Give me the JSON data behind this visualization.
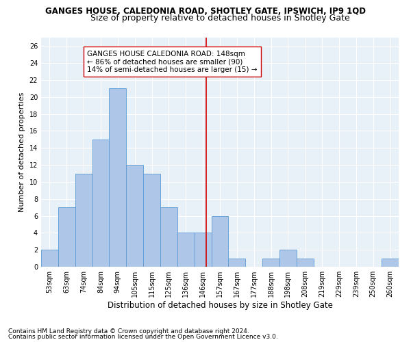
{
  "title": "GANGES HOUSE, CALEDONIA ROAD, SHOTLEY GATE, IPSWICH, IP9 1QD",
  "subtitle": "Size of property relative to detached houses in Shotley Gate",
  "xlabel": "Distribution of detached houses by size in Shotley Gate",
  "ylabel": "Number of detached properties",
  "bin_labels": [
    "53sqm",
    "63sqm",
    "74sqm",
    "84sqm",
    "94sqm",
    "105sqm",
    "115sqm",
    "125sqm",
    "136sqm",
    "146sqm",
    "157sqm",
    "167sqm",
    "177sqm",
    "188sqm",
    "198sqm",
    "208sqm",
    "219sqm",
    "229sqm",
    "239sqm",
    "250sqm",
    "260sqm"
  ],
  "bar_values": [
    2,
    7,
    11,
    15,
    21,
    12,
    11,
    7,
    4,
    4,
    6,
    1,
    0,
    1,
    2,
    1,
    0,
    0,
    0,
    0,
    1
  ],
  "bar_color": "#aec6e8",
  "bar_edge_color": "#5b9bd5",
  "vline_color": "#cc0000",
  "annotation_title": "GANGES HOUSE CALEDONIA ROAD: 148sqm",
  "annotation_line1": "← 86% of detached houses are smaller (90)",
  "annotation_line2": "14% of semi-detached houses are larger (15) →",
  "annotation_box_color": "white",
  "annotation_box_edge": "#cc0000",
  "ylim": [
    0,
    27
  ],
  "yticks": [
    0,
    2,
    4,
    6,
    8,
    10,
    12,
    14,
    16,
    18,
    20,
    22,
    24,
    26
  ],
  "footnote1": "Contains HM Land Registry data © Crown copyright and database right 2024.",
  "footnote2": "Contains public sector information licensed under the Open Government Licence v3.0.",
  "bg_color": "#e8f0f8",
  "grid_color": "white",
  "title_fontsize": 8.5,
  "subtitle_fontsize": 9,
  "xlabel_fontsize": 8.5,
  "ylabel_fontsize": 8,
  "tick_fontsize": 7,
  "annotation_fontsize": 7.5,
  "footnote_fontsize": 6.5
}
